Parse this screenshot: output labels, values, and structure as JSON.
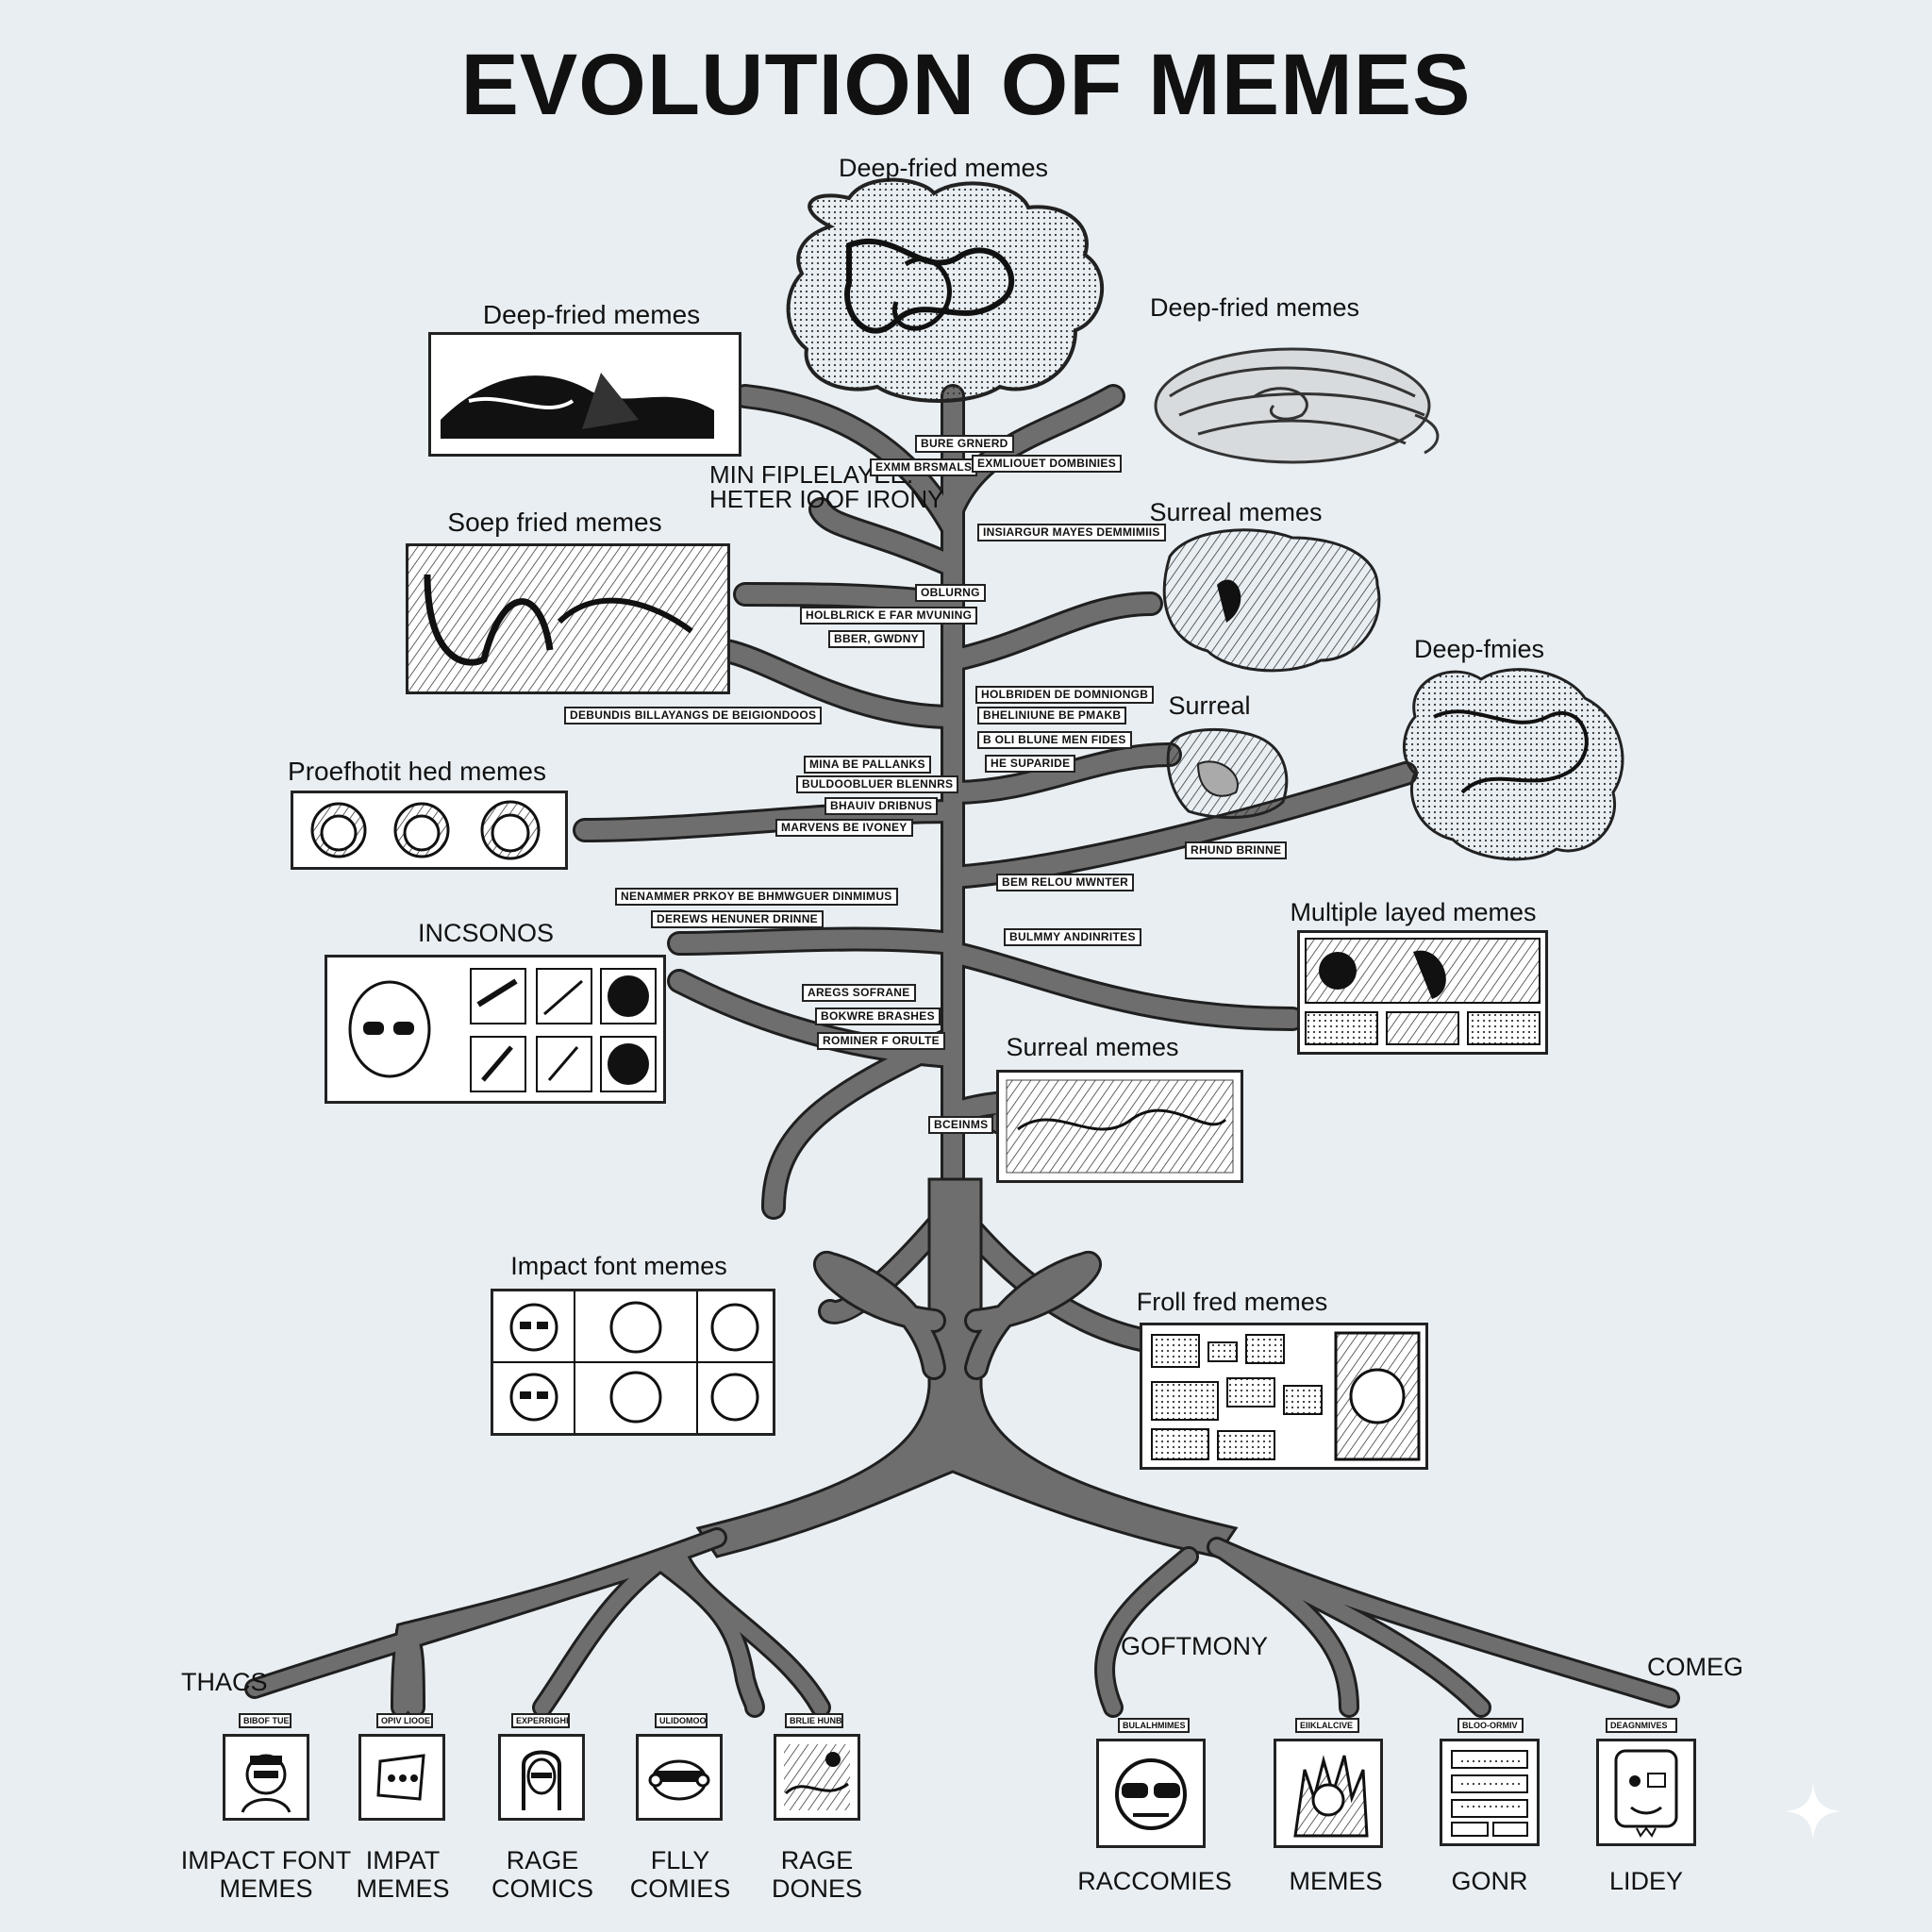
{
  "title": "EVOLUTION OF MEMES",
  "branch_labels": {
    "top": "Deep-fried memes",
    "left1": "Deep-fried memes",
    "right1": "Deep-fried memes",
    "left2": "Soep fried memes",
    "right2": "Surreal memes",
    "right3": "Deep-fmies",
    "right4": "Surreal",
    "left3": "Proefhotit hed memes",
    "right5": "Multiple layed memes",
    "left4": "INCSONOS",
    "right6": "Surreal memes",
    "left5": "Impact font memes",
    "right7": "Froll fred memes"
  },
  "irony_text": [
    "MIN FIPLELAYEE.",
    "HETER IOOF IRONY"
  ],
  "tags": [
    "BURE GRNERD",
    "EXMM BRSMALS",
    "EXMLIOUET DOMBINIES",
    "INSIARGUR MAYES DEMMIMIIS",
    "OBLURNG",
    "HOLBLRICK E FAR MVUNING",
    "BBER, GWDNY",
    "HOLBRIDEN DE DOMNIONGB",
    "BHELINIUNE BE PMAKB",
    "B OLI BLUNE MEN FIDES",
    "HE SUPARIDE",
    "DEBUNDIS BILLAYANGS DE BEIGIONDOOS",
    "MINA BE PALLANKS",
    "BULDOOBLUER BLENNRS",
    "BHAUIV DRIBNUS",
    "MARVENS BE IVONEY",
    "RHUND BRINNE",
    "BEM RELOU MWNTER",
    "NENAMMER PRKOY BE BHMWGUER DINMIMUS",
    "DEREWS HENUNER DRINNE",
    "BULMMY ANDINRITES",
    "AREGS SOFRANE",
    "BOKWRE BRASHES",
    "ROMINER F ORULTE",
    "BCEINMS"
  ],
  "root_groups": {
    "left": "THACS",
    "center": "GOFTMONY",
    "right": "COMEG"
  },
  "leaves": [
    {
      "tag": "BIBOF TUEIS",
      "label": "IMPACT FONT\nMEMES"
    },
    {
      "tag": "OPIV LIOOE",
      "label": "IMPAT\nMEMES"
    },
    {
      "tag": "EXPERRIGHRS",
      "label": "RAGE\nCOMICS"
    },
    {
      "tag": "ULIDOMOOS",
      "label": "FLLY\nCOMIES"
    },
    {
      "tag": "BRLIE HUNBS",
      "label": "RAGE\nDONES"
    },
    {
      "tag": "BULALHMIMES",
      "label": "RACCOMIES"
    },
    {
      "tag": "EIIKLALCIVE",
      "label": "MEMES"
    },
    {
      "tag": "BLOO-ORMIV",
      "label": "GONR"
    },
    {
      "tag": "DEAGNMIVES",
      "label": "LIDEY"
    }
  ],
  "colors": {
    "background": "#e8eef2",
    "trunk": "#6e6e6e",
    "trunk_outline": "#1f1f1f",
    "ink": "#111111"
  }
}
